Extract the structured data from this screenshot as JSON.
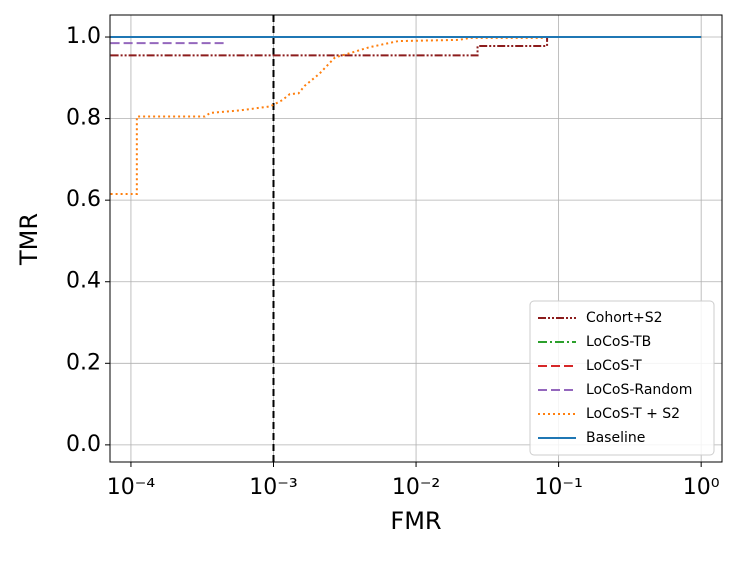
{
  "chart_data": {
    "type": "line",
    "xlabel": "FMR",
    "ylabel": "TMR",
    "xscale": "log",
    "xlim": [
      7.13e-05,
      1.4
    ],
    "ylim": [
      -0.042,
      1.054
    ],
    "xticks": [
      {
        "value": 0.0001,
        "label": "10⁻⁴"
      },
      {
        "value": 0.001,
        "label": "10⁻³"
      },
      {
        "value": 0.01,
        "label": "10⁻²"
      },
      {
        "value": 0.1,
        "label": "10⁻¹"
      },
      {
        "value": 1,
        "label": "10⁰"
      }
    ],
    "yticks": [
      {
        "value": 0,
        "label": "0.0"
      },
      0.2,
      0.4,
      0.6,
      0.8,
      {
        "value": 1,
        "label": "1.0"
      }
    ],
    "grid": true,
    "legend": "lower right",
    "vline": 0.001,
    "vline_color": "#000000",
    "series": [
      {
        "name": "Cohort+S2",
        "color": "#8c1c1c",
        "linestyle": "-..",
        "x": [
          7.2e-05,
          0.027,
          0.027,
          0.083,
          0.083
        ],
        "values": [
          0.955,
          0.955,
          0.978,
          0.978,
          1.0
        ]
      },
      {
        "name": "LoCoS-TB",
        "color": "#2ca02c",
        "linestyle": "-.",
        "x": [
          7.2e-05,
          1
        ],
        "values": [
          1.0,
          1.0
        ]
      },
      {
        "name": "LoCoS-T",
        "color": "#d62728",
        "linestyle": "--",
        "x": [
          7.2e-05,
          1
        ],
        "values": [
          1.0,
          1.0
        ]
      },
      {
        "name": "LoCoS-Random",
        "color": "#9467bd",
        "linestyle": "--",
        "x": [
          7.2e-05,
          0.00046
        ],
        "values": [
          0.985,
          0.985
        ]
      },
      {
        "name": "LoCoS-T + S2",
        "color": "#ff7f0e",
        "linestyle": ":",
        "x": [
          7.2e-05,
          0.00011,
          0.00011,
          0.00033,
          0.00036,
          0.00058,
          0.00095,
          0.00115,
          0.0013,
          0.0015,
          0.00165,
          0.0021,
          0.0027,
          0.0034,
          0.0047,
          0.0075,
          0.02,
          0.024,
          0.08
        ],
        "values": [
          0.615,
          0.615,
          0.805,
          0.805,
          0.814,
          0.82,
          0.83,
          0.845,
          0.86,
          0.862,
          0.88,
          0.91,
          0.95,
          0.96,
          0.975,
          0.99,
          0.993,
          0.998,
          0.998
        ]
      },
      {
        "name": "Baseline",
        "color": "#1f77b4",
        "linestyle": "-",
        "x": [
          7.2e-05,
          1
        ],
        "values": [
          1.0,
          1.0
        ]
      }
    ]
  }
}
